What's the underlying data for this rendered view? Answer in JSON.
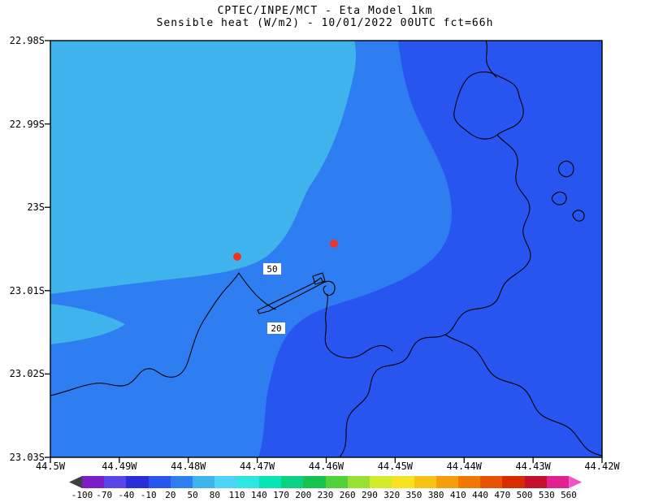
{
  "title": {
    "line1": "CPTEC/INPE/MCT - Eta Model 1km",
    "line2": "Sensible heat (W/m2) - 10/01/2022 00UTC fct=66h"
  },
  "axes": {
    "y_ticks": [
      "22.98S",
      "22.99S",
      "23S",
      "23.01S",
      "23.02S",
      "23.03S"
    ],
    "x_ticks": [
      "44.5W",
      "44.49W",
      "44.48W",
      "44.47W",
      "44.46W",
      "44.45W",
      "44.44W",
      "44.43W",
      "44.42W"
    ]
  },
  "map": {
    "contour_labels": [
      {
        "text": "50"
      },
      {
        "text": "20"
      }
    ],
    "marker_color": "#ee3524",
    "coastline_color": "#000000"
  },
  "colorbar": {
    "values": [
      "-100",
      "-70",
      "-40",
      "-10",
      "20",
      "50",
      "80",
      "110",
      "140",
      "170",
      "200",
      "230",
      "260",
      "290",
      "320",
      "350",
      "380",
      "410",
      "440",
      "470",
      "500",
      "530",
      "560"
    ],
    "colors": [
      "#3f3f3f",
      "#7a1fc8",
      "#5a46e8",
      "#2a2ed8",
      "#2855f0",
      "#2e7ef2",
      "#3fb3ec",
      "#4ed2f5",
      "#2ee6e0",
      "#06e6b4",
      "#0ad282",
      "#16c34e",
      "#52d23a",
      "#98e132",
      "#d2eb28",
      "#f5e31e",
      "#f5c313",
      "#f59d0a",
      "#f07800",
      "#e85200",
      "#d92b00",
      "#c3112e",
      "#e0218f",
      "#ef52c8"
    ]
  },
  "chart_data": {
    "type": "heatmap",
    "title": "CPTEC/INPE/MCT - Eta Model 1km",
    "subtitle": "Sensible heat (W/m2) - 10/01/2022 00UTC fct=66h",
    "institution": "CPTEC/INPE/MCT",
    "model": "Eta Model 1km",
    "variable": "Sensible heat",
    "units": "W/m2",
    "valid": "10/01/2022 00UTC",
    "forecast": "fct=66h",
    "lat_ticks": [
      "22.98S",
      "22.99S",
      "23S",
      "23.01S",
      "23.02S",
      "23.03S"
    ],
    "lon_ticks": [
      "44.5W",
      "44.49W",
      "44.48W",
      "44.47W",
      "44.46W",
      "44.45W",
      "44.44W",
      "44.43W",
      "44.42W"
    ],
    "contour_levels": [
      -100,
      -70,
      -40,
      -10,
      20,
      50,
      80,
      110,
      140,
      170,
      200,
      230,
      260,
      290,
      320,
      350,
      380,
      410,
      440,
      470,
      500,
      530,
      560
    ],
    "contour_labels_on_map": [
      50,
      20
    ],
    "visible_bands": [
      {
        "range": "-10 to 20",
        "color": "#2855f0",
        "region": "east / southeast"
      },
      {
        "range": "20 to 50",
        "color": "#2e7ef2",
        "region": "west / center (dominant)"
      },
      {
        "range": "50 to 80",
        "color": "#3fb3ec",
        "region": "northwest"
      }
    ],
    "station_markers": 2,
    "legend_position": "bottom",
    "grid": false
  }
}
